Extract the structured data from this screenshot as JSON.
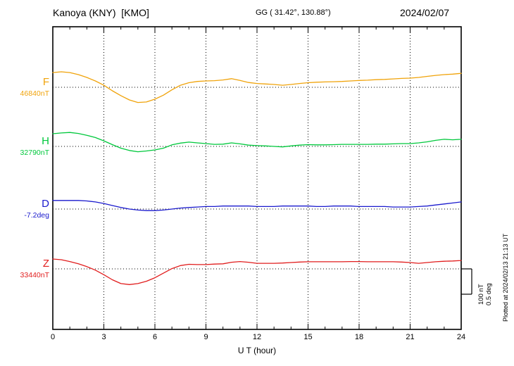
{
  "header": {
    "station": "Kanoya (KNY)  [KMO]",
    "coords": "GG ( 31.42°, 130.88°)",
    "date": "2024/02/07"
  },
  "axis": {
    "xlabel": "U T (hour)"
  },
  "scale": {
    "nt": "100 nT",
    "deg": "0.5 deg"
  },
  "footer": {
    "plotted_at": "Plotted at 2024/02/13 21:13 UT"
  },
  "channels": [
    {
      "label": "F",
      "baseline_label": "46840nT"
    },
    {
      "label": "H",
      "baseline_label": "32790nT"
    },
    {
      "label": "D",
      "baseline_label": "-7.2deg"
    },
    {
      "label": "Z",
      "baseline_label": "33440nT"
    }
  ],
  "chart_data": {
    "type": "line",
    "title": "Kanoya (KNY) [KMO] magnetogram 2024/02/07",
    "xlabel": "U T (hour)",
    "x_range": [
      0,
      24
    ],
    "x_ticks": [
      0,
      3,
      6,
      9,
      12,
      15,
      18,
      21,
      24
    ],
    "grid": "dotted vertical at 3h intervals, dotted baseline per channel",
    "scale_per_division": {
      "nT": 100,
      "deg": 0.5
    },
    "x_hours": [
      0,
      0.5,
      1,
      1.5,
      2,
      2.5,
      3,
      3.5,
      4,
      4.5,
      5,
      5.5,
      6,
      6.5,
      7,
      7.5,
      8,
      8.5,
      9,
      9.5,
      10,
      10.5,
      11,
      11.5,
      12,
      12.5,
      13,
      13.5,
      14,
      14.5,
      15,
      15.5,
      16,
      16.5,
      17,
      17.5,
      18,
      18.5,
      19,
      19.5,
      20,
      20.5,
      21,
      21.5,
      22,
      22.5,
      23,
      23.5,
      24
    ],
    "series": [
      {
        "name": "F",
        "unit": "nT",
        "baseline": 46840,
        "color": "#f0a30a",
        "offsets_from_baseline": [
          58,
          61,
          58,
          50,
          39,
          25,
          8,
          -14,
          -33,
          -50,
          -60,
          -58,
          -47,
          -31,
          -10,
          8,
          18,
          23,
          25,
          26,
          29,
          34,
          27,
          19,
          15,
          13,
          11,
          8,
          11,
          15,
          18,
          20,
          21,
          22,
          23,
          25,
          27,
          28,
          30,
          31,
          33,
          35,
          36,
          39,
          43,
          47,
          50,
          52,
          55
        ]
      },
      {
        "name": "H",
        "unit": "nT",
        "baseline": 32790,
        "color": "#00c83c",
        "offsets_from_baseline": [
          50,
          53,
          55,
          51,
          44,
          35,
          22,
          7,
          -7,
          -16,
          -21,
          -18,
          -14,
          -7,
          6,
          13,
          17,
          14,
          11,
          8,
          9,
          14,
          10,
          5,
          3,
          2,
          0,
          -2,
          2,
          5,
          7,
          6,
          6,
          7,
          8,
          8,
          8,
          8,
          9,
          9,
          10,
          11,
          11,
          14,
          18,
          24,
          28,
          26,
          28
        ]
      },
      {
        "name": "D",
        "unit": "deg",
        "baseline": -7.2,
        "color": "#1a1acd",
        "offsets_from_baseline": [
          0.17,
          0.17,
          0.17,
          0.17,
          0.16,
          0.14,
          0.11,
          0.07,
          0.03,
          0,
          -0.02,
          -0.03,
          -0.03,
          -0.02,
          0,
          0.02,
          0.03,
          0.04,
          0.05,
          0.05,
          0.06,
          0.06,
          0.06,
          0.06,
          0.05,
          0.05,
          0.05,
          0.06,
          0.06,
          0.06,
          0.06,
          0.05,
          0.05,
          0.06,
          0.06,
          0.06,
          0.05,
          0.05,
          0.05,
          0.05,
          0.04,
          0.04,
          0.04,
          0.05,
          0.06,
          0.08,
          0.1,
          0.12,
          0.14
        ]
      },
      {
        "name": "Z",
        "unit": "nT",
        "baseline": 33440,
        "color": "#e11d1d",
        "offsets_from_baseline": [
          39,
          36,
          29,
          20,
          9,
          -5,
          -23,
          -43,
          -58,
          -62,
          -58,
          -49,
          -35,
          -17,
          1,
          13,
          18,
          17,
          17,
          19,
          20,
          26,
          29,
          26,
          22,
          22,
          22,
          23,
          25,
          27,
          28,
          28,
          28,
          28,
          28,
          29,
          29,
          28,
          28,
          28,
          28,
          27,
          25,
          22,
          25,
          28,
          30,
          31,
          33
        ]
      }
    ]
  }
}
